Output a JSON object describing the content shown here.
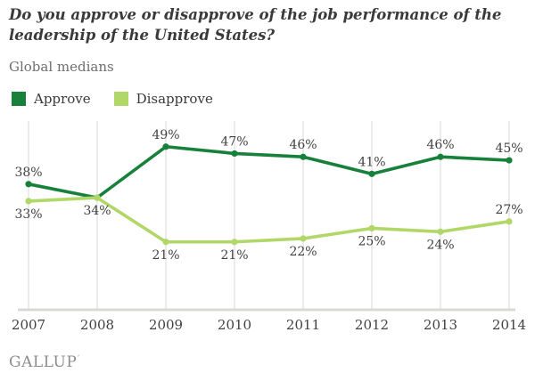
{
  "chart_data": {
    "type": "line",
    "title": "Do you approve or disapprove of the job performance of the\nleadership of the United States?",
    "subtitle": "Global medians",
    "x": [
      "2007",
      "2008",
      "2009",
      "2010",
      "2011",
      "2012",
      "2013",
      "2014"
    ],
    "unit": "%",
    "grid": "vertical",
    "legend_position": "top-left",
    "ylim": [
      0,
      56
    ],
    "series": [
      {
        "name": "Approve",
        "color": "#17803a",
        "values": [
          38,
          34,
          49,
          47,
          46,
          41,
          46,
          45
        ],
        "label_positions": [
          "above",
          "hidden",
          "above",
          "above",
          "above",
          "above",
          "above",
          "above"
        ]
      },
      {
        "name": "Disapprove",
        "color": "#b1d768",
        "values": [
          33,
          34,
          21,
          21,
          22,
          25,
          24,
          27
        ],
        "label_positions": [
          "below",
          "below",
          "below",
          "below",
          "below",
          "below",
          "below",
          "above"
        ]
      }
    ],
    "axis_color": "#d8d8d6",
    "label_color": "#414141"
  },
  "footer": {
    "logo": "GALLUP",
    "mark": "ʼ"
  }
}
